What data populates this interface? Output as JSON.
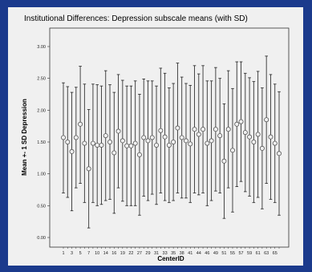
{
  "chart_data": {
    "type": "errorbar",
    "title": "Institutional Differences: Depression subscale means (with SD)",
    "xlabel": "CenterID",
    "ylabel": "Mean +- 1 SD Depression",
    "ylim": [
      0,
      3.0
    ],
    "yticks": [
      "0.00",
      "0.50",
      "1.00",
      "1.50",
      "2.00",
      "2.50",
      "3.00"
    ],
    "ytick_values": [
      0,
      0.5,
      1.0,
      1.5,
      2.0,
      2.5,
      3.0
    ],
    "xtick_labels": [
      "1",
      "3",
      "5",
      "7",
      "10",
      "14",
      "16",
      "19",
      "22",
      "27",
      "29",
      "31",
      "33",
      "35",
      "38",
      "41",
      "44",
      "46",
      "49",
      "51",
      "55",
      "57",
      "59",
      "61",
      "63",
      "65"
    ],
    "grid": false,
    "series": [
      {
        "means": [
          1.57,
          1.5,
          1.35,
          1.57,
          1.78,
          1.48,
          1.08,
          1.48,
          1.45,
          1.45,
          1.6,
          1.5,
          1.33,
          1.67,
          1.52,
          1.44,
          1.44,
          1.48,
          1.3,
          1.57,
          1.52,
          1.57,
          1.45,
          1.68,
          1.58,
          1.45,
          1.5,
          1.72,
          1.57,
          1.52,
          1.47,
          1.7,
          1.62,
          1.7,
          1.48,
          1.52,
          1.7,
          1.6,
          1.2,
          1.7,
          1.37,
          1.78,
          1.82,
          1.65,
          1.58,
          1.5,
          1.62,
          1.4,
          1.85,
          1.58,
          1.48,
          1.32
        ],
        "lower": [
          0.7,
          0.63,
          0.42,
          0.78,
          0.85,
          0.55,
          0.15,
          0.55,
          0.5,
          0.52,
          0.58,
          0.6,
          0.38,
          0.78,
          0.57,
          0.5,
          0.5,
          0.5,
          0.35,
          0.65,
          0.58,
          0.68,
          0.52,
          0.7,
          0.58,
          0.55,
          0.58,
          0.7,
          0.62,
          0.62,
          0.55,
          0.7,
          0.67,
          0.7,
          0.5,
          0.58,
          0.73,
          0.7,
          0.3,
          0.78,
          0.4,
          0.8,
          0.88,
          0.72,
          0.65,
          0.55,
          0.63,
          0.45,
          0.85,
          0.6,
          0.55,
          0.35
        ],
        "upper": [
          2.43,
          2.37,
          2.28,
          2.36,
          2.69,
          2.41,
          2.01,
          2.41,
          2.4,
          2.38,
          2.62,
          2.4,
          2.28,
          2.56,
          2.47,
          2.38,
          2.38,
          2.46,
          2.25,
          2.49,
          2.46,
          2.46,
          2.38,
          2.66,
          2.58,
          2.35,
          2.42,
          2.74,
          2.52,
          2.42,
          2.39,
          2.7,
          2.57,
          2.7,
          2.46,
          2.46,
          2.67,
          2.5,
          2.1,
          2.62,
          2.34,
          2.76,
          2.76,
          2.58,
          2.51,
          2.45,
          2.61,
          2.35,
          2.85,
          2.56,
          2.41,
          2.29
        ]
      }
    ]
  }
}
